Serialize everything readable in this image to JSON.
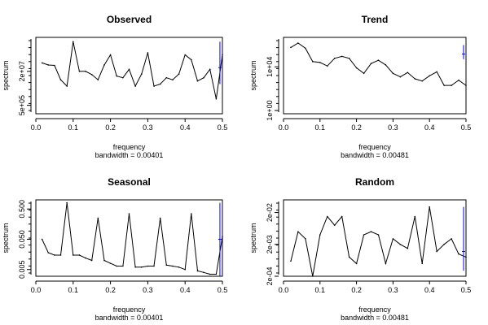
{
  "chart_data": [
    {
      "type": "line",
      "title": "Observed",
      "xlabel": "frequency",
      "ylabel": "spectrum",
      "sublabel": "bandwidth = 0.00401",
      "xlim": [
        0,
        0.5
      ],
      "x_ticks": [
        "0.0",
        "0.1",
        "0.2",
        "0.3",
        "0.4",
        "0.5"
      ],
      "y_scale": "log",
      "ylim": [
        200000,
        800000000
      ],
      "y_ticks": [
        {
          "value": 500000,
          "label": "5e+05"
        },
        {
          "value": 20000000,
          "label": "2e+07"
        }
      ],
      "x": [
        0.0167,
        0.0333,
        0.05,
        0.0667,
        0.0833,
        0.1,
        0.1167,
        0.1333,
        0.15,
        0.1667,
        0.1833,
        0.2,
        0.2167,
        0.2333,
        0.25,
        0.2667,
        0.2833,
        0.3,
        0.3167,
        0.3333,
        0.35,
        0.3667,
        0.3833,
        0.4,
        0.4167,
        0.4333,
        0.45,
        0.4667,
        0.4833,
        0.5
      ],
      "y": [
        50000000,
        40000000,
        38000000,
        8000000,
        4000000,
        500000000,
        20000000,
        20000000,
        14000000,
        8000000,
        40000000,
        120000000,
        12000000,
        10000000,
        25000000,
        4000000,
        15000000,
        150000000,
        4000000,
        5000000,
        10000000,
        8000000,
        15000000,
        120000000,
        70000000,
        7000000,
        10000000,
        25000000,
        1000000,
        120000000
      ],
      "ci_bar": {
        "x": 0.4933,
        "y_low": 5000000,
        "y_mid": 30000000,
        "y_high": 500000000,
        "color": "#0000ff"
      }
    },
    {
      "type": "line",
      "title": "Trend",
      "xlabel": "frequency",
      "ylabel": "spectrum",
      "sublabel": "bandwidth = 0.00481",
      "xlim": [
        0,
        0.5
      ],
      "x_ticks": [
        "0.0",
        "0.1",
        "0.2",
        "0.3",
        "0.4",
        "0.5"
      ],
      "y_scale": "log",
      "ylim": [
        0.5,
        5000000
      ],
      "y_ticks": [
        {
          "value": 1,
          "label": "1e+00"
        },
        {
          "value": 10000,
          "label": "1e+04"
        }
      ],
      "x": [
        0.02,
        0.04,
        0.06,
        0.08,
        0.1,
        0.12,
        0.14,
        0.16,
        0.18,
        0.2,
        0.22,
        0.24,
        0.26,
        0.28,
        0.3,
        0.32,
        0.34,
        0.36,
        0.38,
        0.4,
        0.42,
        0.44,
        0.46,
        0.48,
        0.5
      ],
      "y": [
        600000,
        1500000,
        500000,
        30000,
        25000,
        12000,
        60000,
        90000,
        60000,
        8000,
        2500,
        20000,
        40000,
        15000,
        2500,
        1200,
        3000,
        800,
        500,
        1500,
        3500,
        200,
        200,
        600,
        200
      ],
      "ci_bar": {
        "x": 0.4933,
        "y_low": 50000,
        "y_mid": 150000,
        "y_high": 1000000,
        "color": "#0000ff"
      }
    },
    {
      "type": "line",
      "title": "Seasonal",
      "xlabel": "frequency",
      "ylabel": "spectrum",
      "sublabel": "bandwidth = 0.00401",
      "xlim": [
        0,
        0.5
      ],
      "x_ticks": [
        "0.0",
        "0.1",
        "0.2",
        "0.3",
        "0.4",
        "0.5"
      ],
      "y_scale": "log",
      "ylim": [
        0.003,
        1
      ],
      "y_ticks": [
        {
          "value": 0.005,
          "label": "0.005"
        },
        {
          "value": 0.05,
          "label": "0.050"
        },
        {
          "value": 0.5,
          "label": "0.500"
        }
      ],
      "x": [
        0.0167,
        0.0333,
        0.05,
        0.0667,
        0.0833,
        0.1,
        0.1167,
        0.1333,
        0.15,
        0.1667,
        0.1833,
        0.2,
        0.2167,
        0.2333,
        0.25,
        0.2667,
        0.2833,
        0.3,
        0.3167,
        0.3333,
        0.35,
        0.3667,
        0.3833,
        0.4,
        0.4167,
        0.4333,
        0.45,
        0.4667,
        0.4833,
        0.5
      ],
      "y": [
        0.05,
        0.018,
        0.015,
        0.015,
        0.8,
        0.015,
        0.015,
        0.012,
        0.01,
        0.25,
        0.01,
        0.008,
        0.0065,
        0.0065,
        0.35,
        0.006,
        0.006,
        0.0065,
        0.0065,
        0.25,
        0.007,
        0.0065,
        0.006,
        0.005,
        0.35,
        0.0045,
        0.004,
        0.0035,
        0.0035,
        0.06
      ],
      "ci_bar": {
        "x": 0.4933,
        "y_low": 0.003,
        "y_mid": 0.05,
        "y_high": 0.8,
        "color": "#0000ff"
      }
    },
    {
      "type": "line",
      "title": "Random",
      "xlabel": "frequency",
      "ylabel": "spectrum",
      "sublabel": "bandwidth = 0.00481",
      "xlim": [
        0,
        0.5
      ],
      "x_ticks": [
        "0.0",
        "0.1",
        "0.2",
        "0.3",
        "0.4",
        "0.5"
      ],
      "y_scale": "log",
      "ylim": [
        0.0002,
        0.05
      ],
      "y_ticks": [
        {
          "value": 0.0002,
          "label": "2e-04"
        },
        {
          "value": 0.002,
          "label": "2e-03"
        },
        {
          "value": 0.02,
          "label": "2e-02"
        }
      ],
      "x": [
        0.02,
        0.04,
        0.06,
        0.08,
        0.1,
        0.12,
        0.14,
        0.16,
        0.18,
        0.2,
        0.22,
        0.24,
        0.26,
        0.28,
        0.3,
        0.32,
        0.34,
        0.36,
        0.38,
        0.4,
        0.42,
        0.44,
        0.46,
        0.48,
        0.5
      ],
      "y": [
        0.0006,
        0.005,
        0.003,
        0.0002,
        0.004,
        0.015,
        0.008,
        0.015,
        0.0008,
        0.0005,
        0.004,
        0.005,
        0.004,
        0.0005,
        0.003,
        0.002,
        0.0015,
        0.015,
        0.0005,
        0.03,
        0.0012,
        0.002,
        0.003,
        0.001,
        0.0008
      ],
      "ci_bar": {
        "x": 0.4933,
        "y_low": 0.0003,
        "y_mid": 0.0012,
        "y_high": 0.03,
        "color": "#0000ff"
      }
    }
  ]
}
